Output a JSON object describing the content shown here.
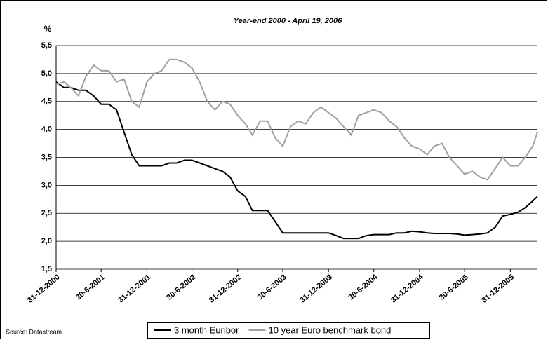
{
  "chart_data": {
    "type": "line",
    "title": "Year-end 2000 - April 19, 2006",
    "y_label": "%",
    "source": "Source: Datastream",
    "x": [
      "31-12-2000",
      "31-1-2001",
      "28-2-2001",
      "31-3-2001",
      "30-4-2001",
      "31-5-2001",
      "30-6-2001",
      "31-7-2001",
      "31-8-2001",
      "30-9-2001",
      "31-10-2001",
      "30-11-2001",
      "31-12-2001",
      "31-1-2002",
      "28-2-2002",
      "31-3-2002",
      "30-4-2002",
      "31-5-2002",
      "30-6-2002",
      "31-7-2002",
      "31-8-2002",
      "30-9-2002",
      "31-10-2002",
      "30-11-2002",
      "31-12-2002",
      "31-1-2003",
      "28-2-2003",
      "31-3-2003",
      "30-4-2003",
      "31-5-2003",
      "30-6-2003",
      "31-7-2003",
      "31-8-2003",
      "30-9-2003",
      "31-10-2003",
      "30-11-2003",
      "31-12-2003",
      "31-1-2004",
      "29-2-2004",
      "31-3-2004",
      "30-4-2004",
      "31-5-2004",
      "30-6-2004",
      "31-7-2004",
      "31-8-2004",
      "30-9-2004",
      "31-10-2004",
      "30-11-2004",
      "31-12-2004",
      "31-1-2005",
      "28-2-2005",
      "31-3-2005",
      "30-4-2005",
      "31-5-2005",
      "30-6-2005",
      "31-7-2005",
      "31-8-2005",
      "30-9-2005",
      "31-10-2005",
      "30-11-2005",
      "31-12-2005",
      "31-1-2006",
      "28-2-2006",
      "31-3-2006",
      "19-4-2006"
    ],
    "series": [
      {
        "name": "3 month Euribor",
        "color": "#000000",
        "values": [
          4.85,
          4.75,
          4.75,
          4.7,
          4.7,
          4.6,
          4.45,
          4.45,
          4.35,
          3.95,
          3.55,
          3.35,
          3.35,
          3.35,
          3.35,
          3.4,
          3.4,
          3.45,
          3.45,
          3.4,
          3.35,
          3.3,
          3.25,
          3.15,
          2.9,
          2.8,
          2.55,
          2.55,
          2.55,
          2.35,
          2.15,
          2.15,
          2.15,
          2.15,
          2.15,
          2.15,
          2.15,
          2.1,
          2.05,
          2.05,
          2.05,
          2.1,
          2.12,
          2.12,
          2.12,
          2.15,
          2.15,
          2.18,
          2.17,
          2.15,
          2.14,
          2.14,
          2.14,
          2.13,
          2.11,
          2.12,
          2.13,
          2.15,
          2.25,
          2.45,
          2.48,
          2.52,
          2.6,
          2.72,
          2.8
        ]
      },
      {
        "name": "10 year Euro benchmark bond",
        "color": "#a0a0a0",
        "values": [
          4.8,
          4.85,
          4.75,
          4.6,
          4.95,
          5.15,
          5.05,
          5.05,
          4.85,
          4.9,
          4.5,
          4.4,
          4.85,
          5.0,
          5.05,
          5.25,
          5.25,
          5.2,
          5.1,
          4.85,
          4.5,
          4.35,
          4.5,
          4.45,
          4.25,
          4.1,
          3.9,
          4.15,
          4.15,
          3.85,
          3.7,
          4.05,
          4.15,
          4.1,
          4.3,
          4.4,
          4.3,
          4.2,
          4.05,
          3.9,
          4.25,
          4.3,
          4.35,
          4.3,
          4.15,
          4.05,
          3.85,
          3.7,
          3.65,
          3.55,
          3.7,
          3.75,
          3.5,
          3.35,
          3.2,
          3.25,
          3.15,
          3.1,
          3.3,
          3.5,
          3.35,
          3.35,
          3.5,
          3.7,
          3.95
        ]
      }
    ],
    "xlim": [
      "31-12-2000",
      "19-4-2006"
    ],
    "xticks": [
      "31-12-2000",
      "30-6-2001",
      "31-12-2001",
      "30-6-2002",
      "31-12-2002",
      "30-6-2003",
      "31-12-2003",
      "30-6-2004",
      "31-12-2004",
      "30-6-2005",
      "31-12-2005"
    ],
    "ylim": [
      1.5,
      5.5
    ],
    "yticks": [
      {
        "value": 1.5,
        "label": "1,5"
      },
      {
        "value": 2.0,
        "label": "2,0"
      },
      {
        "value": 2.5,
        "label": "2,5"
      },
      {
        "value": 3.0,
        "label": "3,0"
      },
      {
        "value": 3.5,
        "label": "3,5"
      },
      {
        "value": 4.0,
        "label": "4,0"
      },
      {
        "value": 4.5,
        "label": "4,5"
      },
      {
        "value": 5.0,
        "label": "5,0"
      },
      {
        "value": 5.5,
        "label": "5,5"
      }
    ],
    "grid": true
  }
}
